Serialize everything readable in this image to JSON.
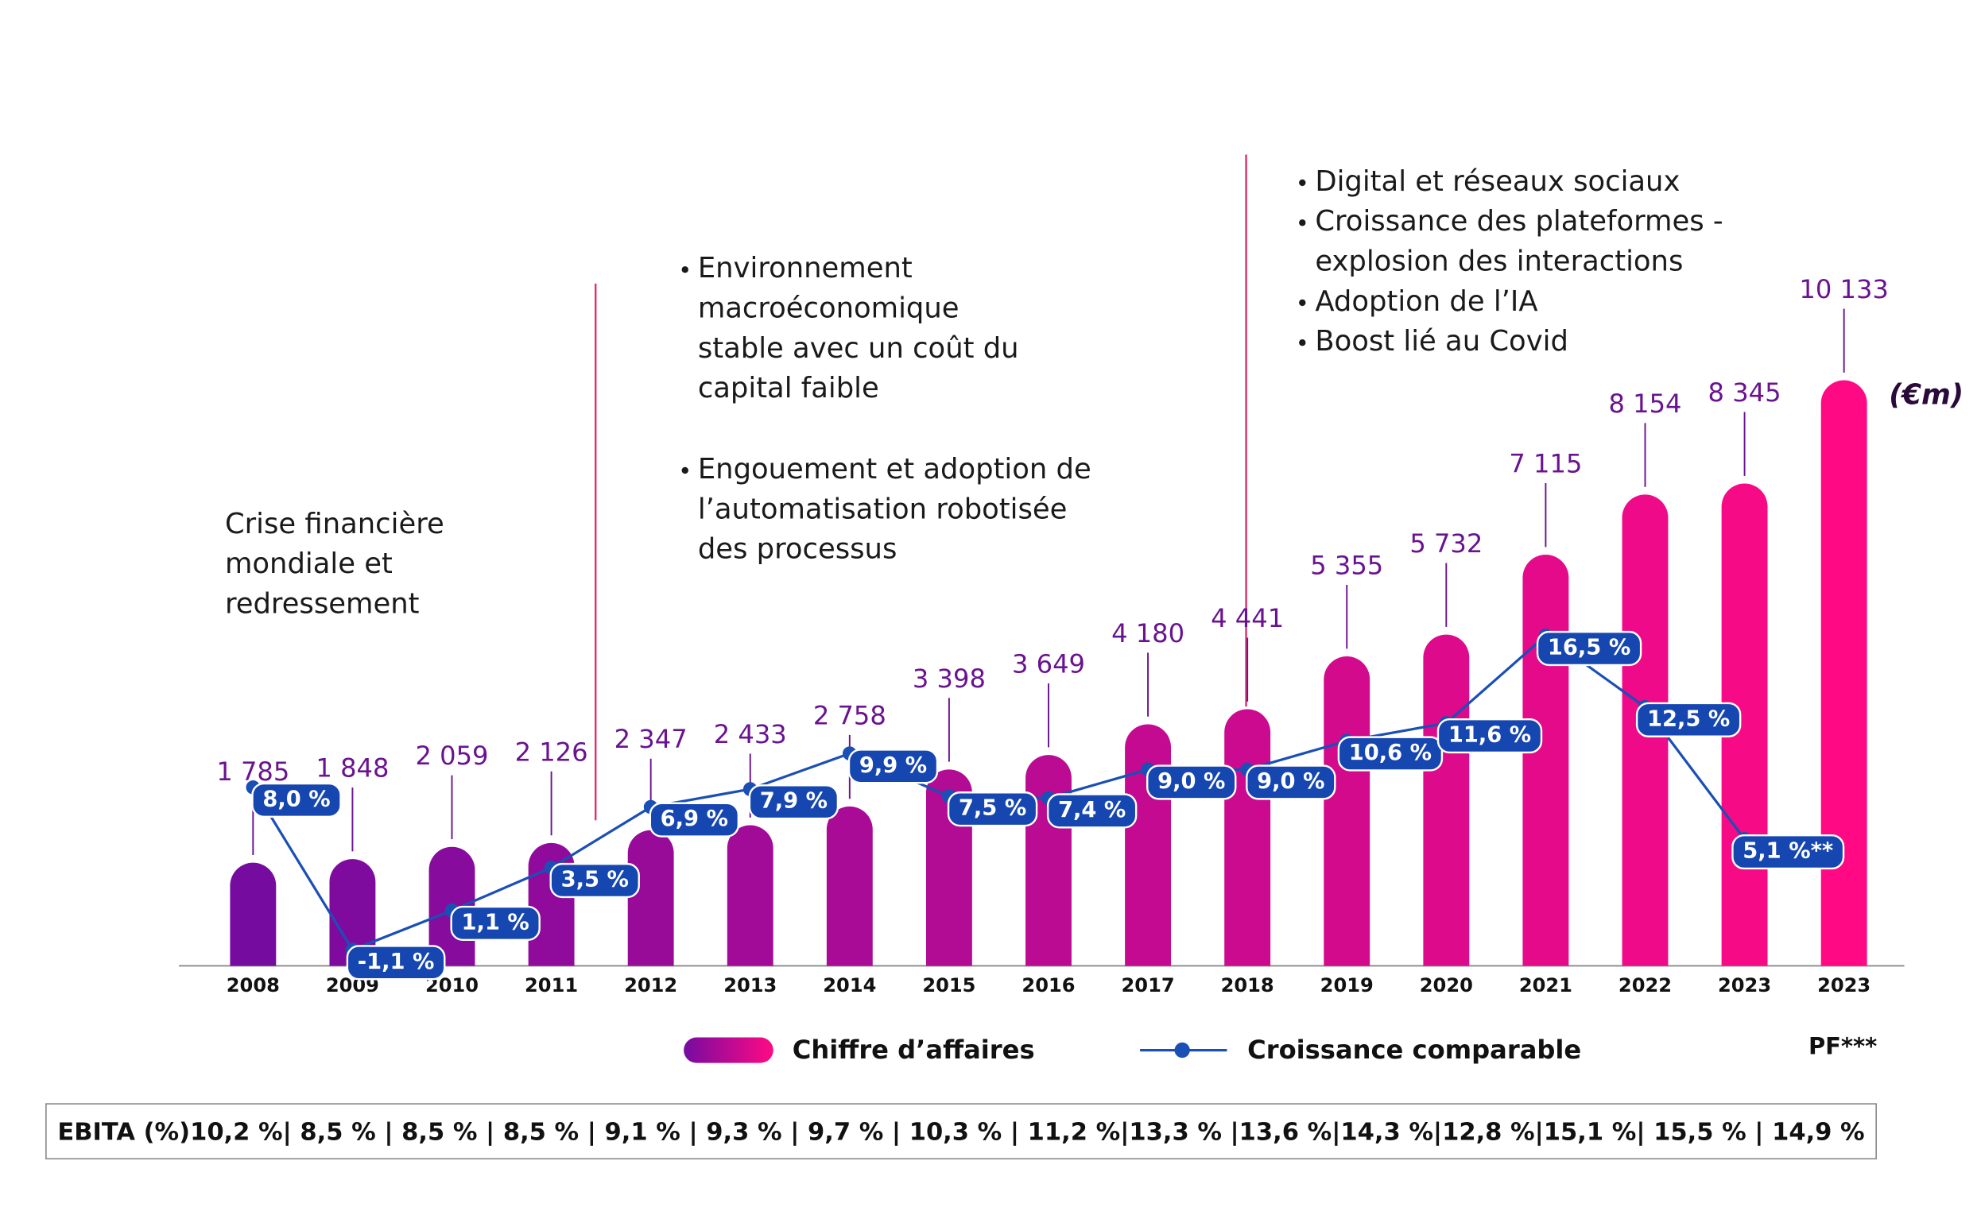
{
  "chart_data": {
    "type": "bar",
    "categories": [
      "2008",
      "2009",
      "2010",
      "2011",
      "2012",
      "2013",
      "2014",
      "2015",
      "2016",
      "2017",
      "2018",
      "2019",
      "2020",
      "2021",
      "2022",
      "2023",
      "2023"
    ],
    "series": [
      {
        "name": "Chiffre d’affaires",
        "color": [
          "#760ba0",
          "#ff0a84"
        ],
        "values": [
          1785,
          1848,
          2059,
          2126,
          2347,
          2433,
          2758,
          3398,
          3649,
          4180,
          4441,
          5355,
          5732,
          7115,
          8154,
          8345,
          10133
        ],
        "value_labels": [
          "1 785",
          "1 848",
          "2 059",
          "2 126",
          "2 347",
          "2 433",
          "2 758",
          "3 398",
          "3 649",
          "4 180",
          "4 441",
          "5 355",
          "5 732",
          "7 115",
          "8 154",
          "8 345",
          "10 133"
        ]
      },
      {
        "name": "Croissance comparable",
        "color": "#1a4fb5",
        "axis": "y2",
        "values": [
          8.0,
          -1.1,
          1.1,
          3.5,
          6.9,
          7.9,
          9.9,
          7.5,
          7.4,
          9.0,
          9.0,
          10.6,
          11.6,
          16.5,
          12.5,
          5.1,
          null
        ],
        "value_labels": [
          "8,0 %",
          "-1,1 %",
          "1,1 %",
          "3,5 %",
          "6,9 %",
          "7,9 %",
          "9,9 %",
          "7,5 %",
          "7,4 %",
          "9,0 %",
          "9,0 %",
          "10,6 %",
          "11,6 %",
          "16,5 %",
          "12,5 %",
          "5,1 %**",
          null
        ]
      }
    ],
    "ylim": [
      0,
      10500
    ],
    "y2lim": [
      -2,
      32
    ],
    "unit_label": "(€m)",
    "x_note": "PF***",
    "annotations": [
      {
        "items": [
          [
            "Crise financière",
            "mondiale et",
            "redressement"
          ]
        ],
        "bullets": false
      },
      {
        "items": [
          [
            "Environnement",
            "macroéconomique",
            "stable avec un coût du",
            "capital faible"
          ],
          [
            "Engouement et adoption de",
            "l’automatisation robotisée",
            "des processus"
          ]
        ],
        "bullets": true
      },
      {
        "items": [
          [
            "Digital et réseaux sociaux"
          ],
          [
            "Croissance des plateformes  -",
            "explosion des interactions"
          ],
          [
            "Adoption de l’IA"
          ],
          [
            "Boost lié au Covid"
          ]
        ],
        "bullets": true
      }
    ],
    "footer": "EBITA (%)10,2 %| 8,5 % | 8,5 % | 8,5 % | 9,1 % | 9,3 % | 9,7 % | 10,3 % | 11,2 %|13,3 % |13,6 %|14,3 %|12,8 %|15,1 %| 15,5 % | 14,9 %"
  }
}
